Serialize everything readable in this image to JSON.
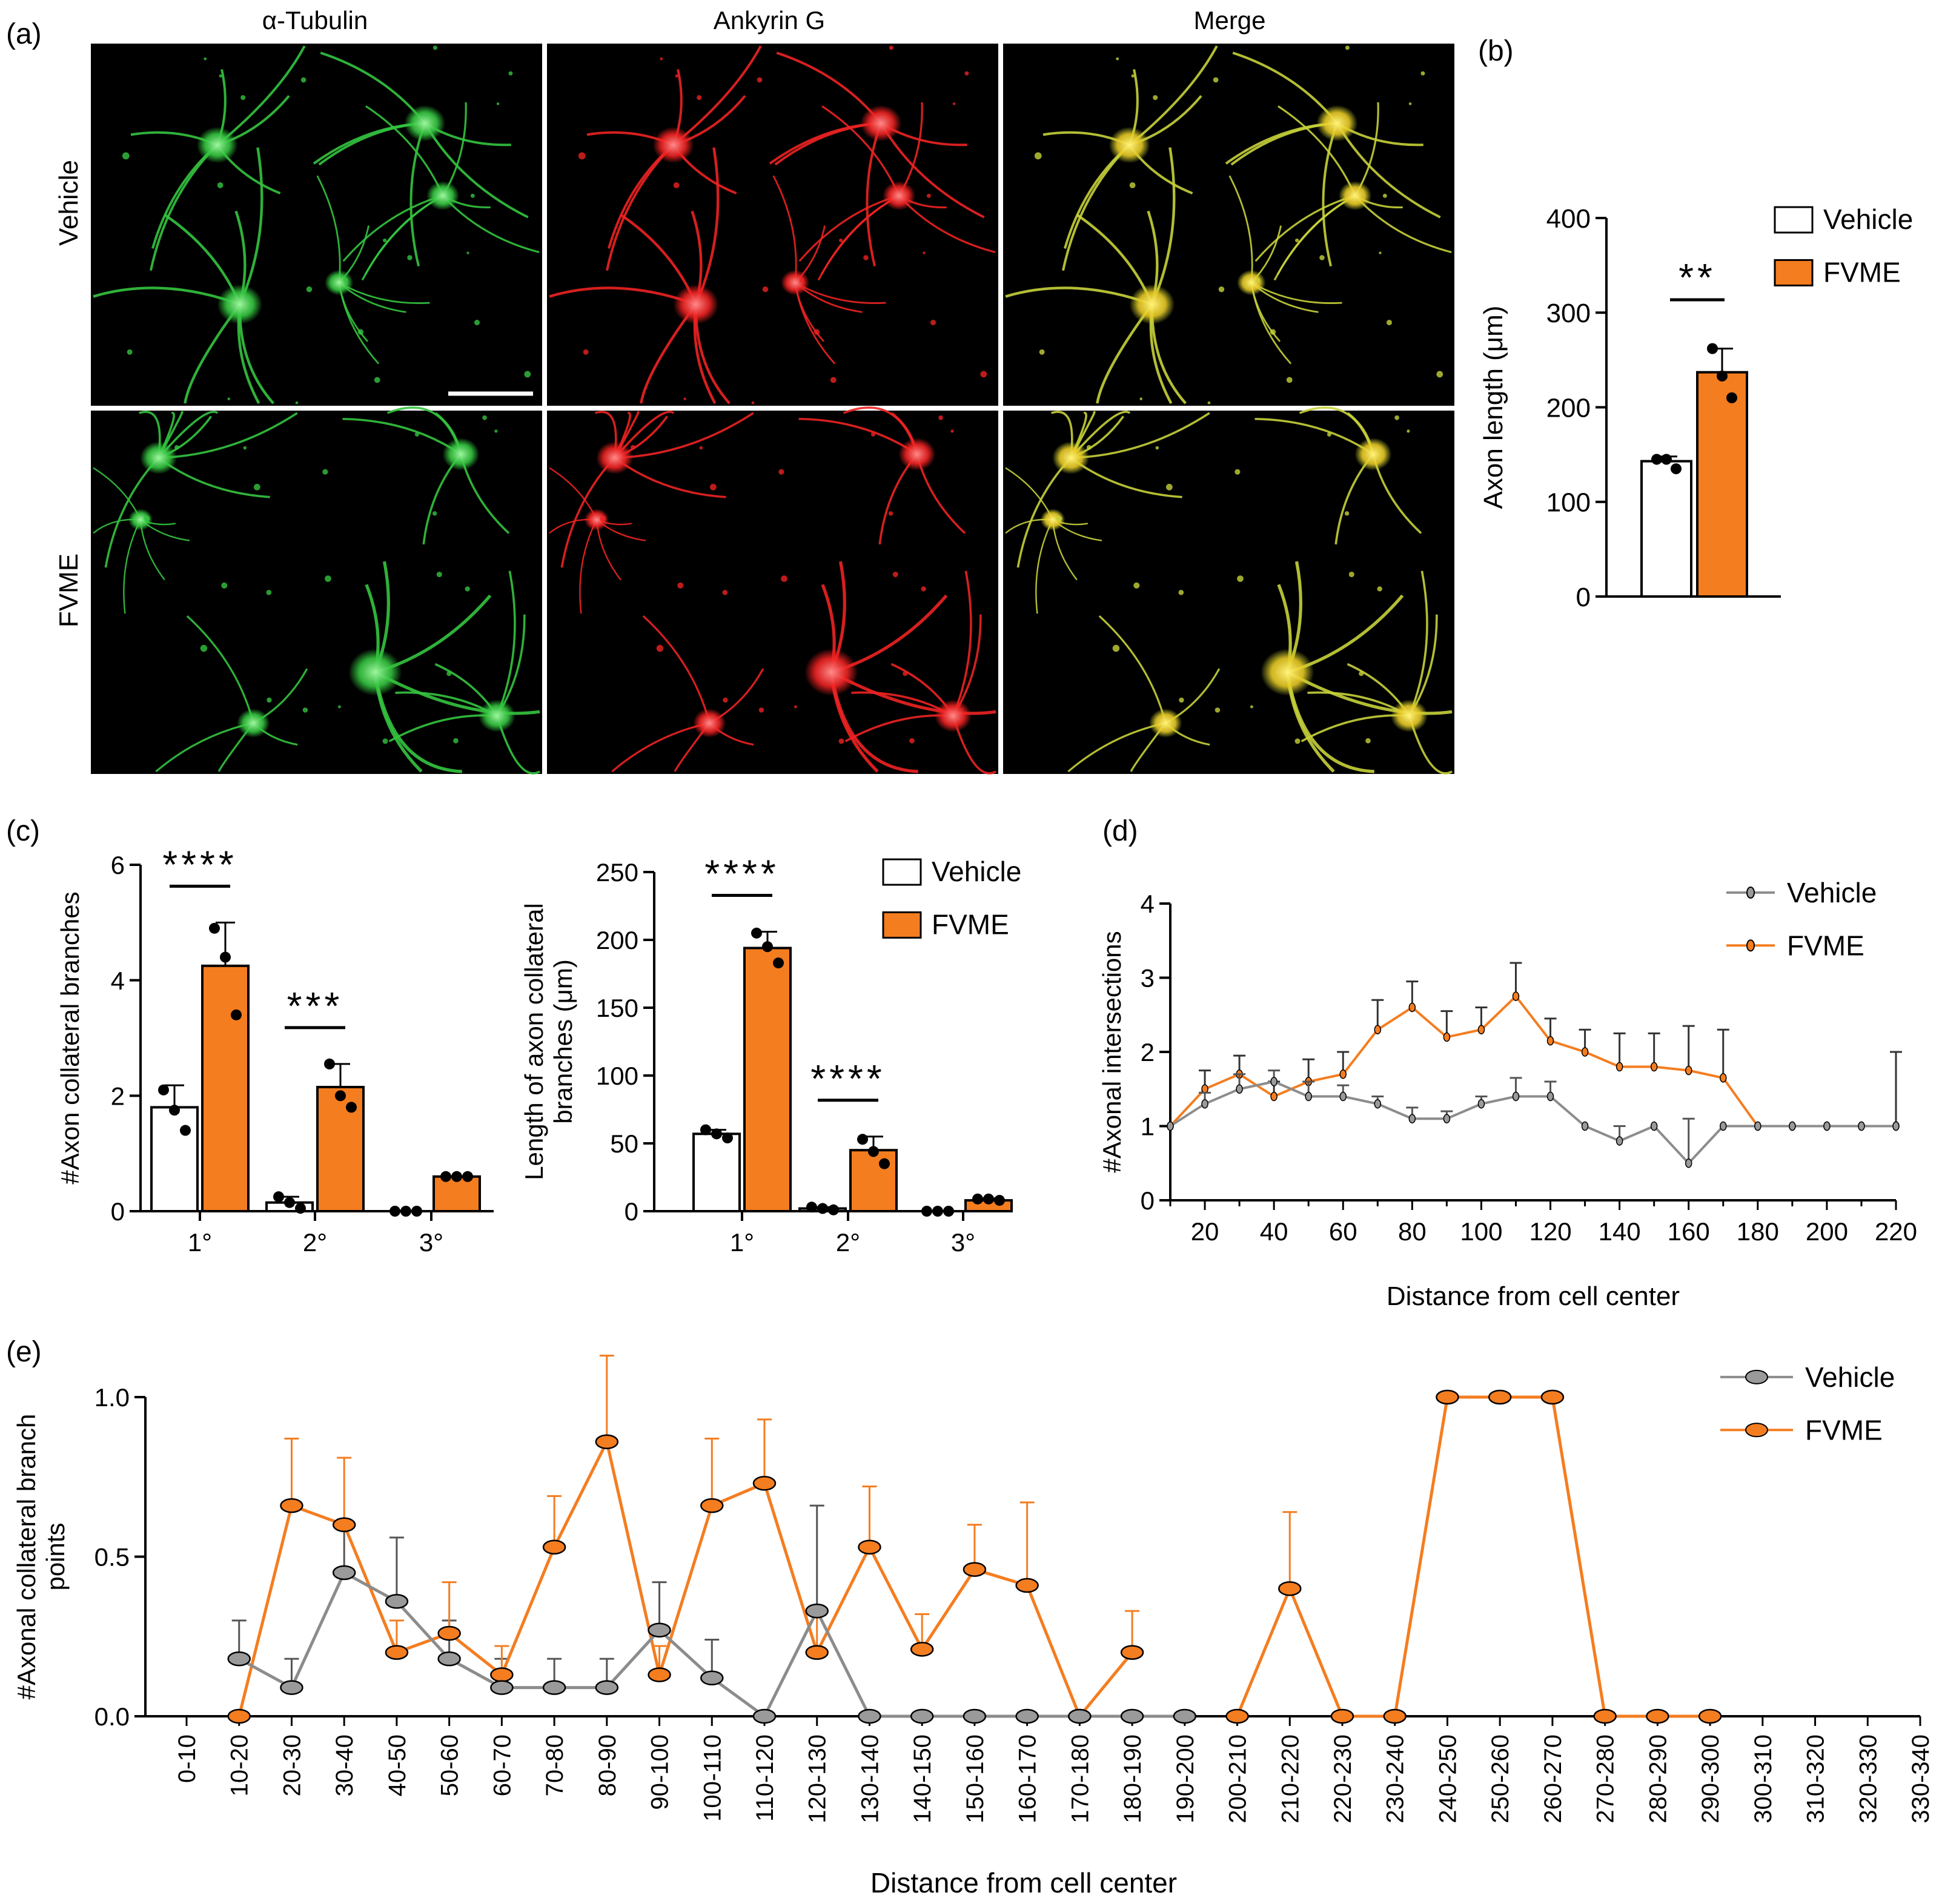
{
  "panel_labels": {
    "a": "(a)",
    "b": "(b)",
    "c": "(c)",
    "d": "(d)",
    "e": "(e)"
  },
  "micrograph": {
    "columns": [
      "α-Tubulin",
      "Ankyrin G",
      "Merge"
    ],
    "rows": [
      "Vehicle",
      "FVME"
    ],
    "colors": {
      "tubulin": "#34c43f",
      "ankyrin": "#ee2222",
      "merge": "#c6d23a",
      "merge_soma": "#f0d024",
      "background": "#000000"
    }
  },
  "legend": {
    "vehicle": "Vehicle",
    "fvme": "FVME"
  },
  "colors": {
    "vehicle_bar": "#ffffff",
    "fvme": "#f47d20",
    "vehicle_line": "#8c8c8c",
    "axis": "#000000"
  },
  "chart_data": [
    {
      "id": "b",
      "type": "bar",
      "ylabel": "Axon length (μm)",
      "ylim": [
        0,
        400
      ],
      "yticks": [
        0,
        100,
        200,
        300,
        400
      ],
      "series": [
        {
          "name": "Vehicle",
          "value": 143,
          "sd": 5,
          "points": [
            145,
            145,
            135
          ]
        },
        {
          "name": "FVME",
          "value": 237,
          "sd": 25,
          "points": [
            262,
            233,
            210
          ]
        }
      ],
      "significance": "**"
    },
    {
      "id": "c1",
      "type": "bar",
      "ylabel": "#Axon collateral branches",
      "ylim": [
        0,
        6
      ],
      "yticks": [
        0,
        2,
        4,
        6
      ],
      "categories": [
        "1°",
        "2°",
        "3°"
      ],
      "series": [
        {
          "name": "Vehicle",
          "values": [
            1.8,
            0.15,
            0.0
          ],
          "sd": [
            0.38,
            0.1,
            0
          ],
          "points": [
            [
              2.1,
              1.75,
              1.4
            ],
            [
              0.25,
              0.15,
              0.05
            ],
            [
              0.0,
              0.0,
              0.0
            ]
          ]
        },
        {
          "name": "FVME",
          "values": [
            4.25,
            2.15,
            0.6
          ],
          "sd": [
            0.75,
            0.4,
            0
          ],
          "points": [
            [
              4.9,
              4.4,
              3.4
            ],
            [
              2.55,
              2.0,
              1.8
            ],
            [
              0.6,
              0.6,
              0.6
            ]
          ]
        }
      ],
      "significance": [
        "****",
        "***",
        ""
      ]
    },
    {
      "id": "c2",
      "type": "bar",
      "ylabel": "Length of axon collateral branches (μm)",
      "ylabel_lines": [
        "Length of axon collateral",
        "branches (μm)"
      ],
      "ylim": [
        0,
        250
      ],
      "yticks": [
        0,
        50,
        100,
        150,
        200,
        250
      ],
      "categories": [
        "1°",
        "2°",
        "3°"
      ],
      "series": [
        {
          "name": "Vehicle",
          "values": [
            57,
            2,
            0
          ],
          "sd": [
            3,
            1,
            0
          ],
          "points": [
            [
              60,
              57,
              54
            ],
            [
              3,
              2,
              1
            ],
            [
              0,
              0,
              0
            ]
          ]
        },
        {
          "name": "FVME",
          "values": [
            194,
            45,
            8
          ],
          "sd": [
            12,
            10,
            1.5
          ],
          "points": [
            [
              205,
              195,
              183
            ],
            [
              53,
              44,
              35
            ],
            [
              9,
              9,
              8
            ]
          ]
        }
      ],
      "significance": [
        "****",
        "****",
        ""
      ]
    },
    {
      "id": "d",
      "type": "line",
      "ylabel": "#Axonal intersections",
      "xlabel": "Distance from cell center",
      "xlim": [
        10,
        220
      ],
      "ylim": [
        0,
        4
      ],
      "yticks": [
        0,
        1,
        2,
        3,
        4
      ],
      "xticks": [
        20,
        40,
        60,
        80,
        100,
        120,
        140,
        160,
        180,
        200,
        220
      ],
      "x": [
        10,
        20,
        30,
        40,
        50,
        60,
        70,
        80,
        90,
        100,
        110,
        120,
        130,
        140,
        150,
        160,
        170,
        180,
        190,
        200,
        210,
        220
      ],
      "series": [
        {
          "name": "Vehicle",
          "values": [
            1.0,
            1.3,
            1.5,
            1.6,
            1.4,
            1.4,
            1.3,
            1.1,
            1.1,
            1.3,
            1.4,
            1.4,
            1.0,
            0.8,
            1.0,
            0.5,
            1.0,
            1.0,
            1.0,
            1.0,
            1.0,
            1.0
          ],
          "err": [
            0,
            0.15,
            0.2,
            0.15,
            0.2,
            0.15,
            0.1,
            0.15,
            0.1,
            0.1,
            0.25,
            0.2,
            0,
            0.2,
            0,
            0.6,
            0,
            0,
            0,
            0,
            0,
            0
          ]
        },
        {
          "name": "FVME",
          "values": [
            1.0,
            1.5,
            1.7,
            1.4,
            1.6,
            1.7,
            2.3,
            2.6,
            2.2,
            2.3,
            2.75,
            2.15,
            2.0,
            1.8,
            1.8,
            1.75,
            1.65,
            1.0,
            1.0,
            1.0,
            1.0,
            1.0
          ],
          "err": [
            0,
            0.25,
            0.25,
            0.2,
            0.3,
            0.3,
            0.4,
            0.35,
            0.35,
            0.3,
            0.45,
            0.3,
            0.3,
            0.45,
            0.45,
            0.6,
            0.65,
            0,
            0,
            0,
            0,
            1.0
          ]
        }
      ]
    },
    {
      "id": "e",
      "type": "line",
      "ylabel": "#Axonal collateral branch points",
      "ylabel_lines": [
        "#Axonal collateral branch",
        "points"
      ],
      "xlabel": "Distance from cell center",
      "ylim": [
        0,
        1.0
      ],
      "yticks": [
        0.0,
        0.5,
        1.0
      ],
      "categories": [
        "0-10",
        "10-20",
        "20-30",
        "30-40",
        "40-50",
        "50-60",
        "60-70",
        "70-80",
        "80-90",
        "90-100",
        "100-110",
        "110-120",
        "120-130",
        "130-140",
        "140-150",
        "150-160",
        "160-170",
        "170-180",
        "180-190",
        "190-200",
        "200-210",
        "210-220",
        "220-230",
        "230-240",
        "240-250",
        "250-260",
        "260-270",
        "270-280",
        "280-290",
        "290-300",
        "300-310",
        "310-320",
        "320-330",
        "330-340"
      ],
      "series": [
        {
          "name": "Vehicle",
          "values": [
            null,
            0.18,
            0.09,
            0.45,
            0.36,
            0.18,
            0.09,
            0.09,
            0.09,
            0.27,
            0.12,
            0.0,
            0.33,
            0.0,
            0.0,
            0.0,
            0.0,
            0.0,
            0.0,
            0.0,
            null,
            null,
            null,
            null,
            null,
            null,
            null,
            null,
            null,
            null,
            null,
            null,
            null,
            null
          ],
          "err": [
            null,
            0.12,
            0.09,
            0.16,
            0.2,
            0.12,
            0.09,
            0.09,
            0.09,
            0.15,
            0.12,
            0,
            0.33,
            0,
            0,
            0,
            0,
            0,
            0,
            0,
            null,
            null,
            null,
            null,
            null,
            null,
            null,
            null,
            null,
            null,
            null,
            null,
            null,
            null
          ]
        },
        {
          "name": "FVME",
          "values": [
            null,
            0.0,
            0.66,
            0.6,
            0.2,
            0.26,
            0.13,
            0.53,
            0.86,
            0.13,
            0.66,
            0.73,
            0.2,
            0.53,
            0.21,
            0.46,
            0.41,
            0.0,
            0.2,
            null,
            0.0,
            0.4,
            0.0,
            0.0,
            1.0,
            1.0,
            1.0,
            0.0,
            0.0,
            0.0,
            null,
            null,
            null,
            null
          ],
          "err": [
            null,
            0,
            0.21,
            0.21,
            0.1,
            0.16,
            0.09,
            0.16,
            0.27,
            0.09,
            0.21,
            0.2,
            0.14,
            0.19,
            0.11,
            0.14,
            0.26,
            0,
            0.13,
            null,
            0,
            0.24,
            0,
            0,
            0,
            0,
            0,
            0,
            0,
            0,
            null,
            null,
            null,
            null
          ]
        }
      ]
    }
  ]
}
